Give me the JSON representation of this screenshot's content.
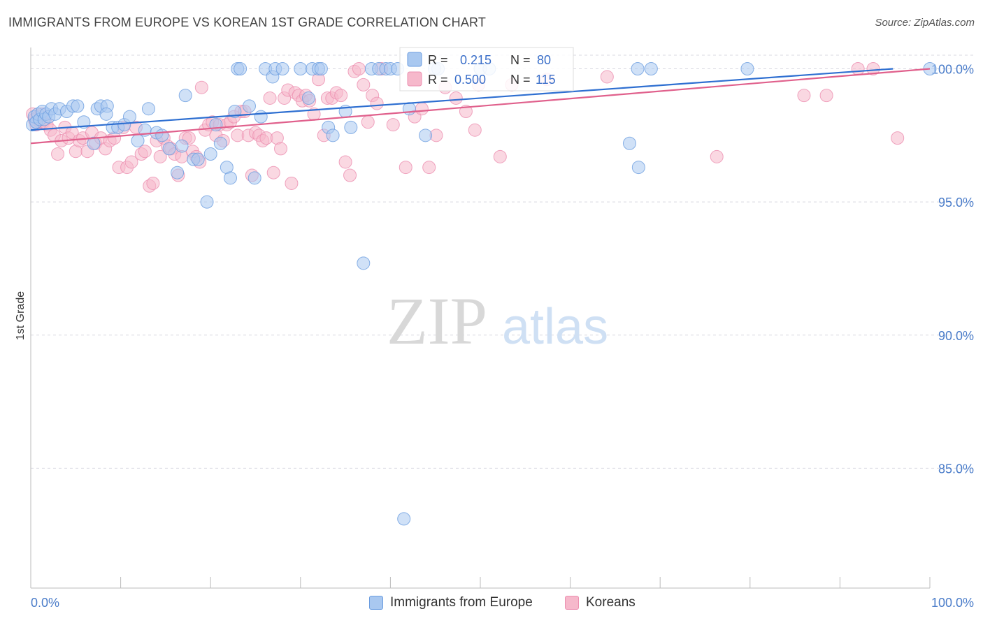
{
  "header": {
    "title": "IMMIGRANTS FROM EUROPE VS KOREAN 1ST GRADE CORRELATION CHART",
    "source": "Source: ZipAtlas.com"
  },
  "watermark": {
    "zip": "ZIP",
    "atlas": "atlas"
  },
  "legend_box": {
    "rows": [
      {
        "r_label": "R = ",
        "r_value": "0.215",
        "n_label": "N = ",
        "n_value": "80"
      },
      {
        "r_label": "R = ",
        "r_value": "0.500",
        "n_label": "N = ",
        "n_value": "115"
      }
    ]
  },
  "bottom_legend": {
    "items": [
      {
        "label": "Immigrants from Europe"
      },
      {
        "label": "Koreans"
      }
    ]
  },
  "colors": {
    "blue_fill": "#a9c8f0",
    "blue_stroke": "#6b9de0",
    "blue_line": "#2e6fd1",
    "pink_fill": "#f6b8cb",
    "pink_stroke": "#ec8fb0",
    "pink_line": "#e0608c",
    "grid": "#d8d8e0",
    "tick_text": "#4a7cc9"
  },
  "chart_data": {
    "type": "scatter",
    "title": "IMMIGRANTS FROM EUROPE VS KOREAN 1ST GRADE CORRELATION CHART",
    "xlabel": "",
    "ylabel": "1st Grade",
    "xlim": [
      0,
      100
    ],
    "ylim": [
      80.5,
      100.8
    ],
    "x_tick_labels": [
      "0.0%",
      "100.0%"
    ],
    "y_ticks": [
      100,
      95,
      90,
      85
    ],
    "y_tick_labels": [
      "100.0%",
      "95.0%",
      "90.0%",
      "85.0%"
    ],
    "grid": true,
    "legend_placement": "bottom",
    "series": [
      {
        "name": "Immigrants from Europe",
        "r": 0.215,
        "n": 80,
        "trend": {
          "x": [
            0,
            95.9
          ],
          "y": [
            97.7,
            100
          ]
        },
        "points": [
          [
            0.2,
            97.9
          ],
          [
            0.4,
            98.2
          ],
          [
            0.6,
            98.0
          ],
          [
            0.8,
            98.3
          ],
          [
            1.0,
            98.1
          ],
          [
            1.3,
            98.4
          ],
          [
            1.5,
            98.1
          ],
          [
            1.7,
            98.3
          ],
          [
            2.0,
            98.2
          ],
          [
            2.3,
            98.5
          ],
          [
            2.7,
            98.3
          ],
          [
            3.2,
            98.5
          ],
          [
            4.0,
            98.4
          ],
          [
            4.7,
            98.6
          ],
          [
            5.2,
            98.6
          ],
          [
            5.9,
            98.0
          ],
          [
            7.0,
            97.2
          ],
          [
            7.4,
            98.5
          ],
          [
            7.8,
            98.6
          ],
          [
            8.5,
            98.6
          ],
          [
            8.4,
            98.3
          ],
          [
            9.1,
            97.8
          ],
          [
            9.7,
            97.8
          ],
          [
            10.4,
            97.9
          ],
          [
            11.0,
            98.2
          ],
          [
            11.9,
            97.3
          ],
          [
            12.7,
            97.7
          ],
          [
            13.1,
            98.5
          ],
          [
            14.0,
            97.6
          ],
          [
            14.6,
            97.5
          ],
          [
            15.4,
            97.0
          ],
          [
            16.3,
            96.1
          ],
          [
            16.8,
            97.1
          ],
          [
            17.2,
            99.0
          ],
          [
            18.1,
            96.6
          ],
          [
            18.6,
            96.6
          ],
          [
            19.6,
            95.0
          ],
          [
            20.0,
            96.8
          ],
          [
            20.6,
            97.9
          ],
          [
            21.1,
            97.2
          ],
          [
            21.8,
            96.3
          ],
          [
            22.2,
            95.9
          ],
          [
            22.7,
            98.4
          ],
          [
            23.0,
            100.0
          ],
          [
            23.3,
            100.0
          ],
          [
            24.3,
            98.6
          ],
          [
            24.9,
            95.9
          ],
          [
            25.6,
            98.2
          ],
          [
            26.1,
            100.0
          ],
          [
            26.9,
            99.7
          ],
          [
            27.2,
            100.0
          ],
          [
            28.0,
            100.0
          ],
          [
            30.0,
            100.0
          ],
          [
            30.9,
            98.9
          ],
          [
            31.3,
            100.0
          ],
          [
            32.0,
            100.0
          ],
          [
            32.3,
            100.0
          ],
          [
            33.1,
            97.8
          ],
          [
            33.6,
            97.5
          ],
          [
            35.0,
            98.4
          ],
          [
            35.6,
            97.8
          ],
          [
            37.0,
            92.7
          ],
          [
            37.9,
            100.0
          ],
          [
            38.7,
            100.0
          ],
          [
            39.5,
            100.0
          ],
          [
            40.0,
            100.0
          ],
          [
            40.8,
            100.0
          ],
          [
            41.5,
            83.1
          ],
          [
            42.1,
            98.5
          ],
          [
            43.9,
            97.5
          ],
          [
            44.9,
            100.0
          ],
          [
            45.3,
            100.0
          ],
          [
            50.0,
            100.0
          ],
          [
            51.0,
            100.0
          ],
          [
            66.6,
            97.2
          ],
          [
            67.6,
            96.3
          ],
          [
            67.5,
            100.0
          ],
          [
            69.0,
            100.0
          ],
          [
            79.7,
            100.0
          ],
          [
            100,
            100.0
          ]
        ]
      },
      {
        "name": "Koreans",
        "r": 0.5,
        "n": 115,
        "trend": {
          "x": [
            0,
            100
          ],
          "y": [
            97.2,
            100
          ]
        },
        "points": [
          [
            0.2,
            98.3
          ],
          [
            0.4,
            98.1
          ],
          [
            0.6,
            97.9
          ],
          [
            0.8,
            98.2
          ],
          [
            1.0,
            98.0
          ],
          [
            1.2,
            98.3
          ],
          [
            1.4,
            98.0
          ],
          [
            1.8,
            97.9
          ],
          [
            2.2,
            97.7
          ],
          [
            2.6,
            97.5
          ],
          [
            3.0,
            96.8
          ],
          [
            3.4,
            97.3
          ],
          [
            3.8,
            97.8
          ],
          [
            4.2,
            97.4
          ],
          [
            4.6,
            97.6
          ],
          [
            5.0,
            96.9
          ],
          [
            5.4,
            97.3
          ],
          [
            5.8,
            97.4
          ],
          [
            6.3,
            96.9
          ],
          [
            6.8,
            97.6
          ],
          [
            7.2,
            97.2
          ],
          [
            7.8,
            97.4
          ],
          [
            8.3,
            97.0
          ],
          [
            8.8,
            97.3
          ],
          [
            9.3,
            97.4
          ],
          [
            9.8,
            96.3
          ],
          [
            10.3,
            97.8
          ],
          [
            10.7,
            96.3
          ],
          [
            11.2,
            96.5
          ],
          [
            11.7,
            97.8
          ],
          [
            12.3,
            96.8
          ],
          [
            12.7,
            96.9
          ],
          [
            13.2,
            95.6
          ],
          [
            13.6,
            95.7
          ],
          [
            14.0,
            97.3
          ],
          [
            14.4,
            96.7
          ],
          [
            14.8,
            97.4
          ],
          [
            15.2,
            97.1
          ],
          [
            15.6,
            97.0
          ],
          [
            16.0,
            96.8
          ],
          [
            16.4,
            96.0
          ],
          [
            16.8,
            96.7
          ],
          [
            17.2,
            97.4
          ],
          [
            17.6,
            97.4
          ],
          [
            18.0,
            96.9
          ],
          [
            18.4,
            96.7
          ],
          [
            18.8,
            96.5
          ],
          [
            19.0,
            99.3
          ],
          [
            19.4,
            97.7
          ],
          [
            19.8,
            97.9
          ],
          [
            20.2,
            98.0
          ],
          [
            20.6,
            97.5
          ],
          [
            21.0,
            97.9
          ],
          [
            21.4,
            97.3
          ],
          [
            21.8,
            97.9
          ],
          [
            22.2,
            98.0
          ],
          [
            22.6,
            98.2
          ],
          [
            23.0,
            97.5
          ],
          [
            23.4,
            98.4
          ],
          [
            23.8,
            98.4
          ],
          [
            24.2,
            97.5
          ],
          [
            24.6,
            96.0
          ],
          [
            25.0,
            97.6
          ],
          [
            25.4,
            97.5
          ],
          [
            25.8,
            97.3
          ],
          [
            26.2,
            97.4
          ],
          [
            26.6,
            98.9
          ],
          [
            27.0,
            96.1
          ],
          [
            27.4,
            97.4
          ],
          [
            27.8,
            97.0
          ],
          [
            28.2,
            98.9
          ],
          [
            28.6,
            99.2
          ],
          [
            29.0,
            95.7
          ],
          [
            29.4,
            99.1
          ],
          [
            29.8,
            99.0
          ],
          [
            30.2,
            98.8
          ],
          [
            30.6,
            99.0
          ],
          [
            31.0,
            98.8
          ],
          [
            31.5,
            98.3
          ],
          [
            32.0,
            99.6
          ],
          [
            32.6,
            97.5
          ],
          [
            33.0,
            98.9
          ],
          [
            33.5,
            98.9
          ],
          [
            34.0,
            99.1
          ],
          [
            34.5,
            99.0
          ],
          [
            35.0,
            96.5
          ],
          [
            35.5,
            96.0
          ],
          [
            36.0,
            99.9
          ],
          [
            36.5,
            100.0
          ],
          [
            37.0,
            99.4
          ],
          [
            37.5,
            98.0
          ],
          [
            38.0,
            99.0
          ],
          [
            38.5,
            98.7
          ],
          [
            39.0,
            100.0
          ],
          [
            40.3,
            97.9
          ],
          [
            41.7,
            96.3
          ],
          [
            42.7,
            98.2
          ],
          [
            43.5,
            98.5
          ],
          [
            44.3,
            96.3
          ],
          [
            45.1,
            97.5
          ],
          [
            46.1,
            99.3
          ],
          [
            47.3,
            98.9
          ],
          [
            48.4,
            98.4
          ],
          [
            49.4,
            97.7
          ],
          [
            49.8,
            99.4
          ],
          [
            52.2,
            96.7
          ],
          [
            53.5,
            99.4
          ],
          [
            57.4,
            99.6
          ],
          [
            64.1,
            99.7
          ],
          [
            76.3,
            96.7
          ],
          [
            86.0,
            99.0
          ],
          [
            88.5,
            99.0
          ],
          [
            92.0,
            100.0
          ],
          [
            93.7,
            100.0
          ],
          [
            96.4,
            97.4
          ]
        ]
      }
    ]
  }
}
